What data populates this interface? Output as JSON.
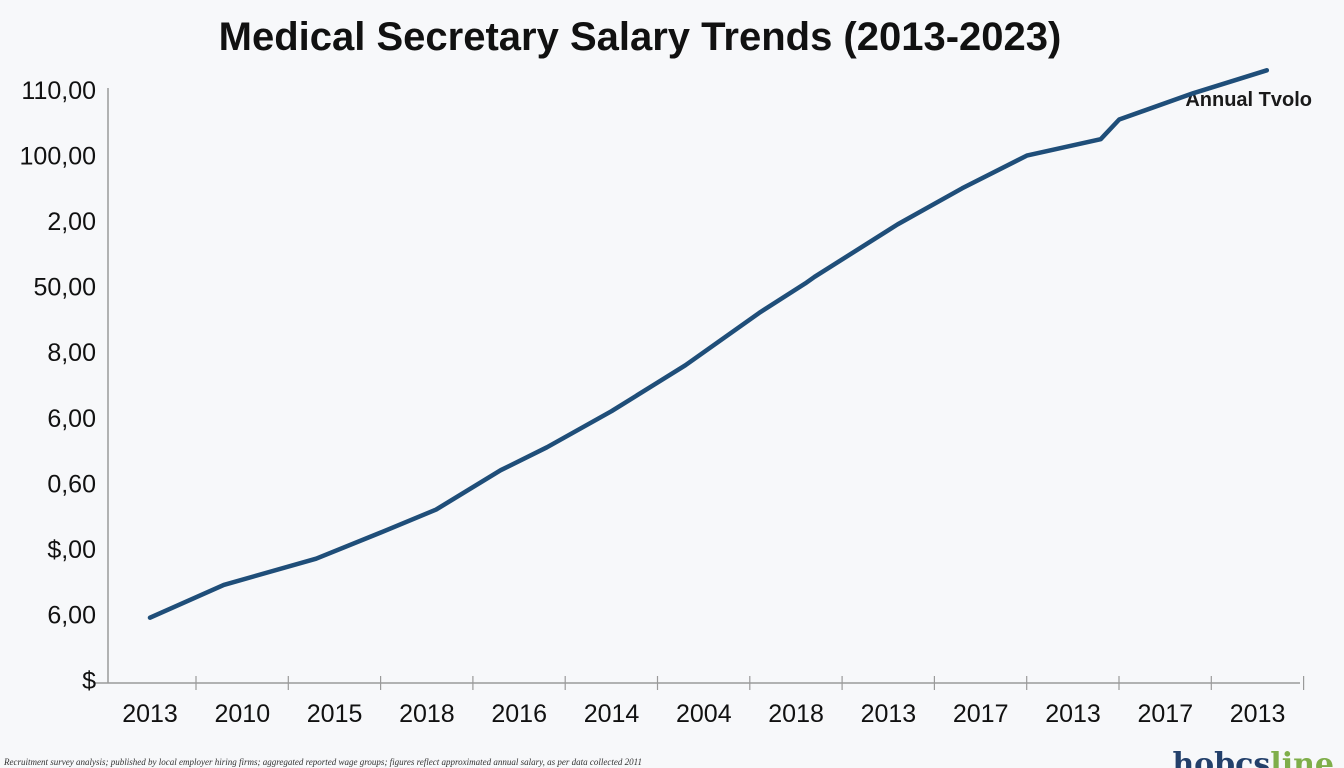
{
  "chart_data": {
    "type": "line",
    "title": "Medical Secretary Salary Trends (2013-2023)",
    "xlabel": "",
    "ylabel": "",
    "categories": [
      "2013",
      "2010",
      "2015",
      "2018",
      "2016",
      "2014",
      "2004",
      "2018",
      "2013",
      "2017",
      "2013",
      "2017",
      "2013"
    ],
    "y_tick_labels": [
      "$",
      "6,00",
      "$,00",
      "0,60",
      "6,00",
      "8,00",
      "50,00",
      "2,00",
      "100,00",
      "110,00"
    ],
    "ylim": [
      0,
      9
    ],
    "grid": false,
    "legend_position": "top-right",
    "series": [
      {
        "name": "Annual Tvolo",
        "color": "#1f4e79",
        "x": [
          0,
          0.8,
          1.8,
          2.5,
          3.1,
          3.8,
          4.3,
          5.0,
          5.8,
          6.6,
          7.1,
          7.2,
          8.1,
          8.8,
          9.5,
          10.3,
          10.5,
          11.3,
          12.1
        ],
        "values": [
          0.95,
          1.45,
          1.85,
          2.25,
          2.6,
          3.2,
          3.55,
          4.1,
          4.8,
          5.6,
          6.05,
          6.15,
          6.95,
          7.5,
          8.0,
          8.25,
          8.55,
          8.95,
          9.3
        ]
      }
    ]
  },
  "footnote": "Recruitment survey analysis; published by local employer hiring firms; aggregated reported wage groups; figures reflect approximated annual salary, as per data collected 2011",
  "logo_text": "hobcsline",
  "colors": {
    "background": "#f7f8fa",
    "axis": "#9a9a9a",
    "line": "#1f4e79",
    "logo_dark": "#23406b",
    "logo_light": "#7fae4a"
  }
}
